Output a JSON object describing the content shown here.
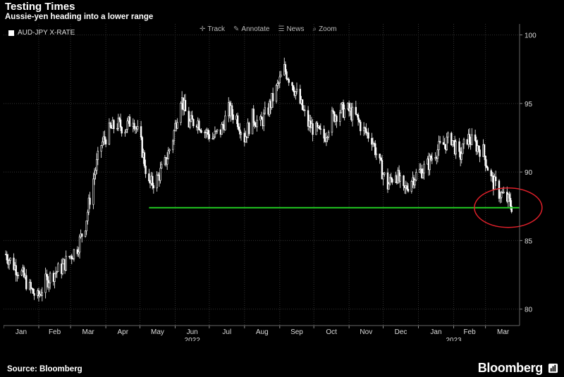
{
  "title": "Testing Times",
  "subtitle": "Aussie-yen heading into a lower range",
  "legend": {
    "label": "AUD-JPY X-RATE"
  },
  "toolbar": {
    "track": "Track",
    "annotate": "Annotate",
    "news": "News",
    "zoom": "Zoom"
  },
  "source": "Source: Bloomberg",
  "brand": "Bloomberg",
  "colors": {
    "background": "#000000",
    "series": "#ffffff",
    "support_line": "#22cc22",
    "highlight_circle": "#e0202a",
    "grid": "#333333"
  },
  "chart_data": {
    "type": "candlestick",
    "title": "Testing Times",
    "subtitle": "Aussie-yen heading into a lower range",
    "series_name": "AUD-JPY X-RATE",
    "y_axis": {
      "position": "right",
      "range": [
        78.8,
        100.8
      ],
      "ticks": [
        80,
        85,
        90,
        95,
        100
      ]
    },
    "x_axis": {
      "months": [
        "Jan",
        "Feb",
        "Mar",
        "Apr",
        "May",
        "Jun",
        "Jul",
        "Aug",
        "Sep",
        "Oct",
        "Nov",
        "Dec",
        "Jan",
        "Feb",
        "Mar"
      ],
      "year_labels": [
        {
          "label": "2022",
          "month_index": 5.5
        },
        {
          "label": "2023",
          "month_index": 13.0
        }
      ],
      "start": "2022-01-01",
      "end": "2023-03-31"
    },
    "prices": [
      [
        "2022-01-03",
        84.0
      ],
      [
        "2022-01-10",
        83.2
      ],
      [
        "2022-01-17",
        82.6
      ],
      [
        "2022-01-24",
        81.5
      ],
      [
        "2022-01-31",
        80.8
      ],
      [
        "2022-02-07",
        82.0
      ],
      [
        "2022-02-14",
        82.6
      ],
      [
        "2022-02-21",
        83.0
      ],
      [
        "2022-02-28",
        83.8
      ],
      [
        "2022-03-07",
        84.5
      ],
      [
        "2022-03-14",
        86.2
      ],
      [
        "2022-03-21",
        89.5
      ],
      [
        "2022-03-28",
        92.0
      ],
      [
        "2022-04-04",
        93.0
      ],
      [
        "2022-04-11",
        93.5
      ],
      [
        "2022-04-18",
        93.2
      ],
      [
        "2022-04-25",
        94.0
      ],
      [
        "2022-05-02",
        92.0
      ],
      [
        "2022-05-09",
        89.0
      ],
      [
        "2022-05-16",
        89.5
      ],
      [
        "2022-05-23",
        90.6
      ],
      [
        "2022-05-30",
        92.5
      ],
      [
        "2022-06-06",
        95.5
      ],
      [
        "2022-06-13",
        93.5
      ],
      [
        "2022-06-20",
        93.8
      ],
      [
        "2022-06-27",
        93.0
      ],
      [
        "2022-07-04",
        92.5
      ],
      [
        "2022-07-11",
        93.0
      ],
      [
        "2022-07-18",
        94.5
      ],
      [
        "2022-07-25",
        94.0
      ],
      [
        "2022-08-01",
        92.5
      ],
      [
        "2022-08-08",
        94.0
      ],
      [
        "2022-08-15",
        93.5
      ],
      [
        "2022-08-22",
        94.6
      ],
      [
        "2022-08-29",
        96.0
      ],
      [
        "2022-09-05",
        97.5
      ],
      [
        "2022-09-12",
        96.5
      ],
      [
        "2022-09-19",
        95.0
      ],
      [
        "2022-09-26",
        93.5
      ],
      [
        "2022-10-03",
        93.0
      ],
      [
        "2022-10-10",
        92.5
      ],
      [
        "2022-10-17",
        94.0
      ],
      [
        "2022-10-24",
        94.5
      ],
      [
        "2022-10-31",
        94.5
      ],
      [
        "2022-11-07",
        94.0
      ],
      [
        "2022-11-14",
        93.0
      ],
      [
        "2022-11-21",
        92.5
      ],
      [
        "2022-11-28",
        90.5
      ],
      [
        "2022-12-05",
        89.0
      ],
      [
        "2022-12-12",
        90.0
      ],
      [
        "2022-12-19",
        88.5
      ],
      [
        "2022-12-26",
        89.5
      ],
      [
        "2023-01-02",
        90.0
      ],
      [
        "2023-01-09",
        90.5
      ],
      [
        "2023-01-16",
        91.5
      ],
      [
        "2023-01-23",
        92.0
      ],
      [
        "2023-01-30",
        92.5
      ],
      [
        "2023-02-06",
        91.0
      ],
      [
        "2023-02-13",
        92.5
      ],
      [
        "2023-02-20",
        92.0
      ],
      [
        "2023-02-27",
        91.5
      ],
      [
        "2023-03-06",
        89.5
      ],
      [
        "2023-03-13",
        88.5
      ],
      [
        "2023-03-20",
        88.0
      ],
      [
        "2023-03-27",
        87.2
      ]
    ],
    "annotations": [
      {
        "type": "horizontal_line",
        "y": 87.4,
        "from": "2022-05-09",
        "to": "2023-03-31",
        "color": "#22cc22"
      },
      {
        "type": "ellipse",
        "center_date": "2023-03-21",
        "center_y": 87.4,
        "color": "#e0202a"
      }
    ]
  }
}
